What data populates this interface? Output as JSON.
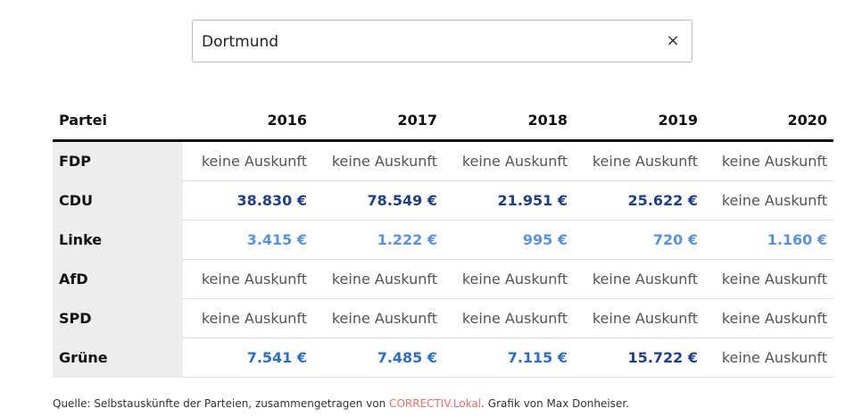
{
  "search": {
    "value": "Dortmund",
    "clear_icon": "×"
  },
  "table": {
    "columns": [
      "Partei",
      "2016",
      "2017",
      "2018",
      "2019",
      "2020"
    ],
    "rows": [
      {
        "party": "FDP",
        "values": [
          "keine Auskunft",
          "keine Auskunft",
          "keine Auskunft",
          "keine Auskunft",
          "keine Auskunft"
        ],
        "styles": [
          "none",
          "none",
          "none",
          "none",
          "none"
        ]
      },
      {
        "party": "CDU",
        "values": [
          "38.830 €",
          "78.549 €",
          "21.951 €",
          "25.622 €",
          "keine Auskunft"
        ],
        "styles": [
          "dark",
          "dark",
          "dark",
          "dark",
          "none"
        ]
      },
      {
        "party": "Linke",
        "values": [
          "3.415 €",
          "1.222 €",
          "995 €",
          "720 €",
          "1.160 €"
        ],
        "styles": [
          "light",
          "light",
          "light",
          "light",
          "light"
        ]
      },
      {
        "party": "AfD",
        "values": [
          "keine Auskunft",
          "keine Auskunft",
          "keine Auskunft",
          "keine Auskunft",
          "keine Auskunft"
        ],
        "styles": [
          "none",
          "none",
          "none",
          "none",
          "none"
        ]
      },
      {
        "party": "SPD",
        "values": [
          "keine Auskunft",
          "keine Auskunft",
          "keine Auskunft",
          "keine Auskunft",
          "keine Auskunft"
        ],
        "styles": [
          "none",
          "none",
          "none",
          "none",
          "none"
        ]
      },
      {
        "party": "Grüne",
        "values": [
          "7.541 €",
          "7.485 €",
          "7.115 €",
          "15.722 €",
          "keine Auskunft"
        ],
        "styles": [
          "mid",
          "mid",
          "mid",
          "dark",
          "none"
        ]
      }
    ]
  },
  "colors": {
    "dark": "#1f3f86",
    "mid": "#2e6fc1",
    "light": "#5a93d8",
    "none": "#555555",
    "link": "#e8706a"
  },
  "footer": {
    "prefix": "Quelle: Selbstauskünfte der Parteien, zusammengetragen von ",
    "link": "CORRECTIV.Lokal",
    "suffix": ". Grafik von Max Donheiser."
  }
}
